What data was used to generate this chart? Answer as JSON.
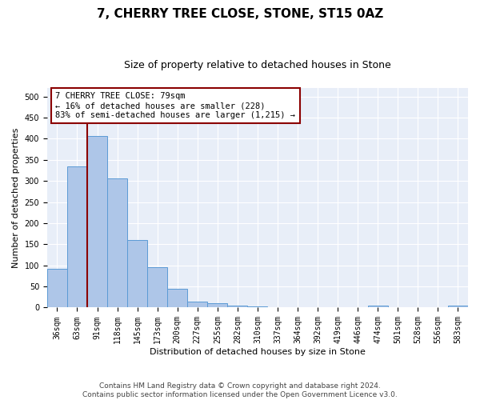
{
  "title": "7, CHERRY TREE CLOSE, STONE, ST15 0AZ",
  "subtitle": "Size of property relative to detached houses in Stone",
  "xlabel": "Distribution of detached houses by size in Stone",
  "ylabel": "Number of detached properties",
  "categories": [
    "36sqm",
    "63sqm",
    "91sqm",
    "118sqm",
    "145sqm",
    "173sqm",
    "200sqm",
    "227sqm",
    "255sqm",
    "282sqm",
    "310sqm",
    "337sqm",
    "364sqm",
    "392sqm",
    "419sqm",
    "446sqm",
    "474sqm",
    "501sqm",
    "528sqm",
    "556sqm",
    "583sqm"
  ],
  "values": [
    91,
    335,
    407,
    305,
    160,
    95,
    44,
    14,
    10,
    5,
    2,
    1,
    0,
    0,
    0,
    0,
    5,
    0,
    0,
    0,
    5
  ],
  "bar_color": "#aec6e8",
  "bar_edge_color": "#5b9bd5",
  "vline_x": 1.5,
  "vline_color": "#8b0000",
  "annotation_text": "7 CHERRY TREE CLOSE: 79sqm\n← 16% of detached houses are smaller (228)\n83% of semi-detached houses are larger (1,215) →",
  "annotation_box_color": "#8b0000",
  "annotation_bg": "white",
  "ylim": [
    0,
    520
  ],
  "yticks": [
    0,
    50,
    100,
    150,
    200,
    250,
    300,
    350,
    400,
    450,
    500
  ],
  "bg_color": "#e8eef8",
  "footer_text": "Contains HM Land Registry data © Crown copyright and database right 2024.\nContains public sector information licensed under the Open Government Licence v3.0.",
  "title_fontsize": 11,
  "subtitle_fontsize": 9,
  "axis_label_fontsize": 8,
  "tick_fontsize": 7,
  "annotation_fontsize": 7.5,
  "footer_fontsize": 6.5
}
